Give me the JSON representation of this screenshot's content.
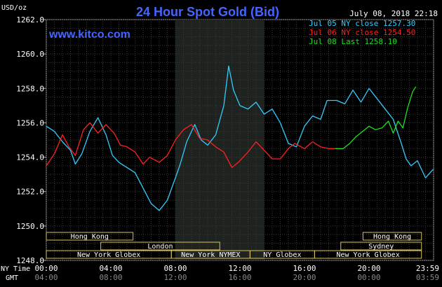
{
  "header": {
    "title": "24 Hour Spot Gold (Bid)",
    "unit": "USD/oz",
    "datetime": "July 08, 2018 22:18",
    "website": "www.kitco.com"
  },
  "legend": [
    {
      "text": "Jul 05 NY close 1257.30",
      "color": "#33CCFF"
    },
    {
      "text": "Jul 06 NY close 1254.50",
      "color": "#FF2020"
    },
    {
      "text": "Jul 08 Last 1258.10",
      "color": "#22DD22"
    }
  ],
  "axis": {
    "row1_label": "NY Time",
    "row2_label": "GMT",
    "ny_ticks": [
      "00:00",
      "04:00",
      "08:00",
      "12:00",
      "16:00",
      "20:00",
      "23:59"
    ],
    "gmt_ticks": [
      "04:00",
      "08:00",
      "12:00",
      "16:00",
      "20:00",
      "00:00",
      "03:59"
    ]
  },
  "sessions": [
    {
      "label": "Hong Kong",
      "start": 0,
      "end": 10.75
    },
    {
      "label": "London",
      "start": 6.75,
      "end": 21.5
    },
    {
      "label": "New York Globex",
      "start": 0,
      "end": 15.5
    },
    {
      "label": "New York NYMEX",
      "start": 15.5,
      "end": 25.25
    },
    {
      "label": "NY Globex",
      "start": 25.25,
      "end": 33.25
    },
    {
      "label": "Hong Kong",
      "start": 39.25,
      "end": 46.5
    },
    {
      "label": "Sydney",
      "start": 36.5,
      "end": 46.5
    },
    {
      "label": "New York Globex",
      "start": 33.25,
      "end": 46.5
    }
  ],
  "chart_data": {
    "type": "line",
    "xlabel": "",
    "ylabel": "USD/oz",
    "xlim": [
      0,
      24
    ],
    "ylim": [
      1248,
      1262
    ],
    "yticks": [
      1248.0,
      1250.0,
      1252.0,
      1254.0,
      1256.0,
      1258.0,
      1260.0,
      1262.0
    ],
    "grid": true,
    "highlight_range": [
      8,
      13.5
    ],
    "series": [
      {
        "name": "Jul 05 NY close 1257.30",
        "color": "#33CCFF",
        "x": [
          0,
          0.5,
          1,
          1.5,
          1.8,
          2.2,
          2.7,
          3.2,
          3.7,
          4.1,
          4.5,
          5,
          5.5,
          6,
          6.5,
          7,
          7.5,
          8,
          8.3,
          8.7,
          9.2,
          9.6,
          10,
          10.5,
          11,
          11.3,
          11.6,
          12,
          12.5,
          13,
          13.5,
          14,
          14.5,
          15,
          15.5,
          16,
          16.5,
          17,
          17.4,
          18,
          18.5,
          19,
          19.5,
          20,
          20.5,
          21,
          21.5,
          22,
          22.3,
          22.6,
          23,
          23.5,
          23.98
        ],
        "y": [
          1255.8,
          1255.5,
          1254.9,
          1254.4,
          1253.6,
          1254.2,
          1255.5,
          1256.3,
          1255.3,
          1254.1,
          1253.7,
          1253.4,
          1253.1,
          1252.2,
          1251.3,
          1250.9,
          1251.5,
          1252.8,
          1253.6,
          1254.9,
          1255.9,
          1255.0,
          1254.7,
          1255.3,
          1257.0,
          1259.3,
          1257.9,
          1257.0,
          1256.8,
          1257.2,
          1256.5,
          1256.8,
          1256.0,
          1254.8,
          1254.6,
          1255.8,
          1256.4,
          1256.2,
          1257.3,
          1257.3,
          1257.1,
          1257.9,
          1257.2,
          1258.0,
          1257.4,
          1256.8,
          1256.2,
          1254.8,
          1253.9,
          1253.5,
          1253.8,
          1252.8,
          1253.3
        ]
      },
      {
        "name": "Jul 06 NY close 1254.50",
        "color": "#FF2020",
        "x": [
          0,
          0.5,
          1,
          1.4,
          1.8,
          2.3,
          2.7,
          3.2,
          3.7,
          4.2,
          4.6,
          5,
          5.5,
          6,
          6.4,
          7,
          7.5,
          8,
          8.5,
          9,
          9.5,
          10,
          10.5,
          11,
          11.5,
          11.9,
          12.5,
          13,
          13.5,
          14,
          14.5,
          15,
          15.4,
          16,
          16.5,
          17,
          17.5,
          17.9
        ],
        "y": [
          1253.5,
          1254.2,
          1255.3,
          1254.6,
          1254.1,
          1255.6,
          1256.0,
          1255.4,
          1255.9,
          1255.4,
          1254.7,
          1254.6,
          1254.3,
          1253.6,
          1254.0,
          1253.7,
          1254.1,
          1255.0,
          1255.6,
          1255.9,
          1255.1,
          1255.0,
          1254.6,
          1254.3,
          1253.4,
          1253.7,
          1254.3,
          1254.9,
          1254.4,
          1253.9,
          1253.9,
          1254.5,
          1254.8,
          1254.5,
          1254.9,
          1254.6,
          1254.5,
          1254.5
        ]
      },
      {
        "name": "Jul 08 Last 1258.10",
        "color": "#22DD22",
        "x": [
          17.9,
          18.4,
          18.8,
          19.2,
          19.6,
          20,
          20.4,
          20.8,
          21.2,
          21.5,
          21.8,
          22.1,
          22.4,
          22.7,
          22.9
        ],
        "y": [
          1254.5,
          1254.5,
          1254.8,
          1255.2,
          1255.5,
          1255.8,
          1255.6,
          1255.7,
          1256.1,
          1255.4,
          1256.1,
          1255.7,
          1256.9,
          1257.8,
          1258.1
        ]
      }
    ]
  }
}
